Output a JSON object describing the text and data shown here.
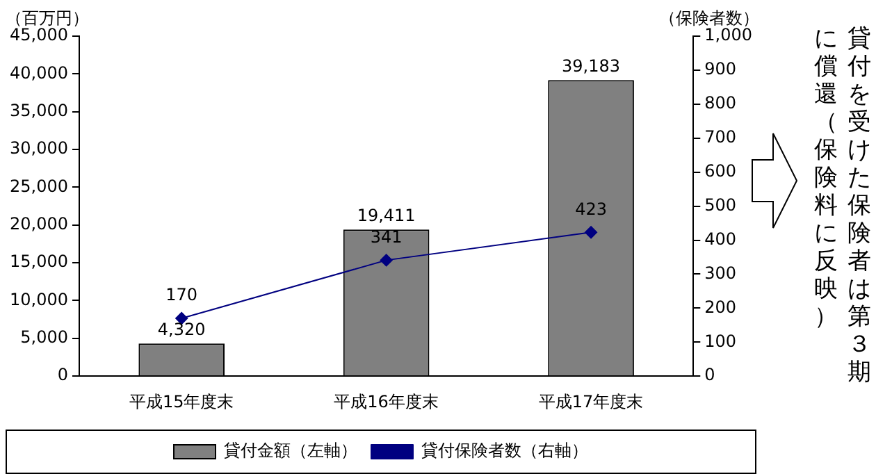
{
  "chart_data": {
    "type": "bar",
    "categories": [
      "平成15年度末",
      "平成16年度末",
      "平成17年度末"
    ],
    "series": [
      {
        "type": "bar",
        "name": "貸付金額（左軸）",
        "color": "#808080",
        "values": [
          4320,
          19411,
          39183
        ],
        "value_labels": [
          "4,320",
          "19,411",
          "39,183"
        ]
      },
      {
        "type": "line",
        "axis": "y2",
        "name": "貸付保険者数（右軸）",
        "color": "#000080",
        "values": [
          170,
          341,
          423
        ],
        "value_labels": [
          "170",
          "341",
          "423"
        ]
      }
    ],
    "ylabel": "（百万円）",
    "y2label": "（保険者数）",
    "ylim": [
      0,
      45000
    ],
    "yticks": [
      0,
      {
        "value": 5000,
        "label": "5,000"
      },
      {
        "value": 10000,
        "label": "10,000"
      },
      {
        "value": 15000,
        "label": "15,000"
      },
      {
        "value": 20000,
        "label": "20,000"
      },
      {
        "value": 25000,
        "label": "25,000"
      },
      {
        "value": 30000,
        "label": "30,000"
      },
      {
        "value": 35000,
        "label": "35,000"
      },
      {
        "value": 40000,
        "label": "40,000"
      },
      {
        "value": 45000,
        "label": "45,000"
      }
    ],
    "y2lim": [
      0,
      1000
    ],
    "y2ticks": [
      0,
      100,
      200,
      300,
      400,
      500,
      600,
      700,
      800,
      900,
      {
        "value": 1000,
        "label": "1,000"
      }
    ],
    "marker": "diamond",
    "grid": false,
    "legend": "bottom",
    "annotations": [
      "貸付を受けた保険者は第３期",
      "に償還（保険料に反映）"
    ]
  }
}
